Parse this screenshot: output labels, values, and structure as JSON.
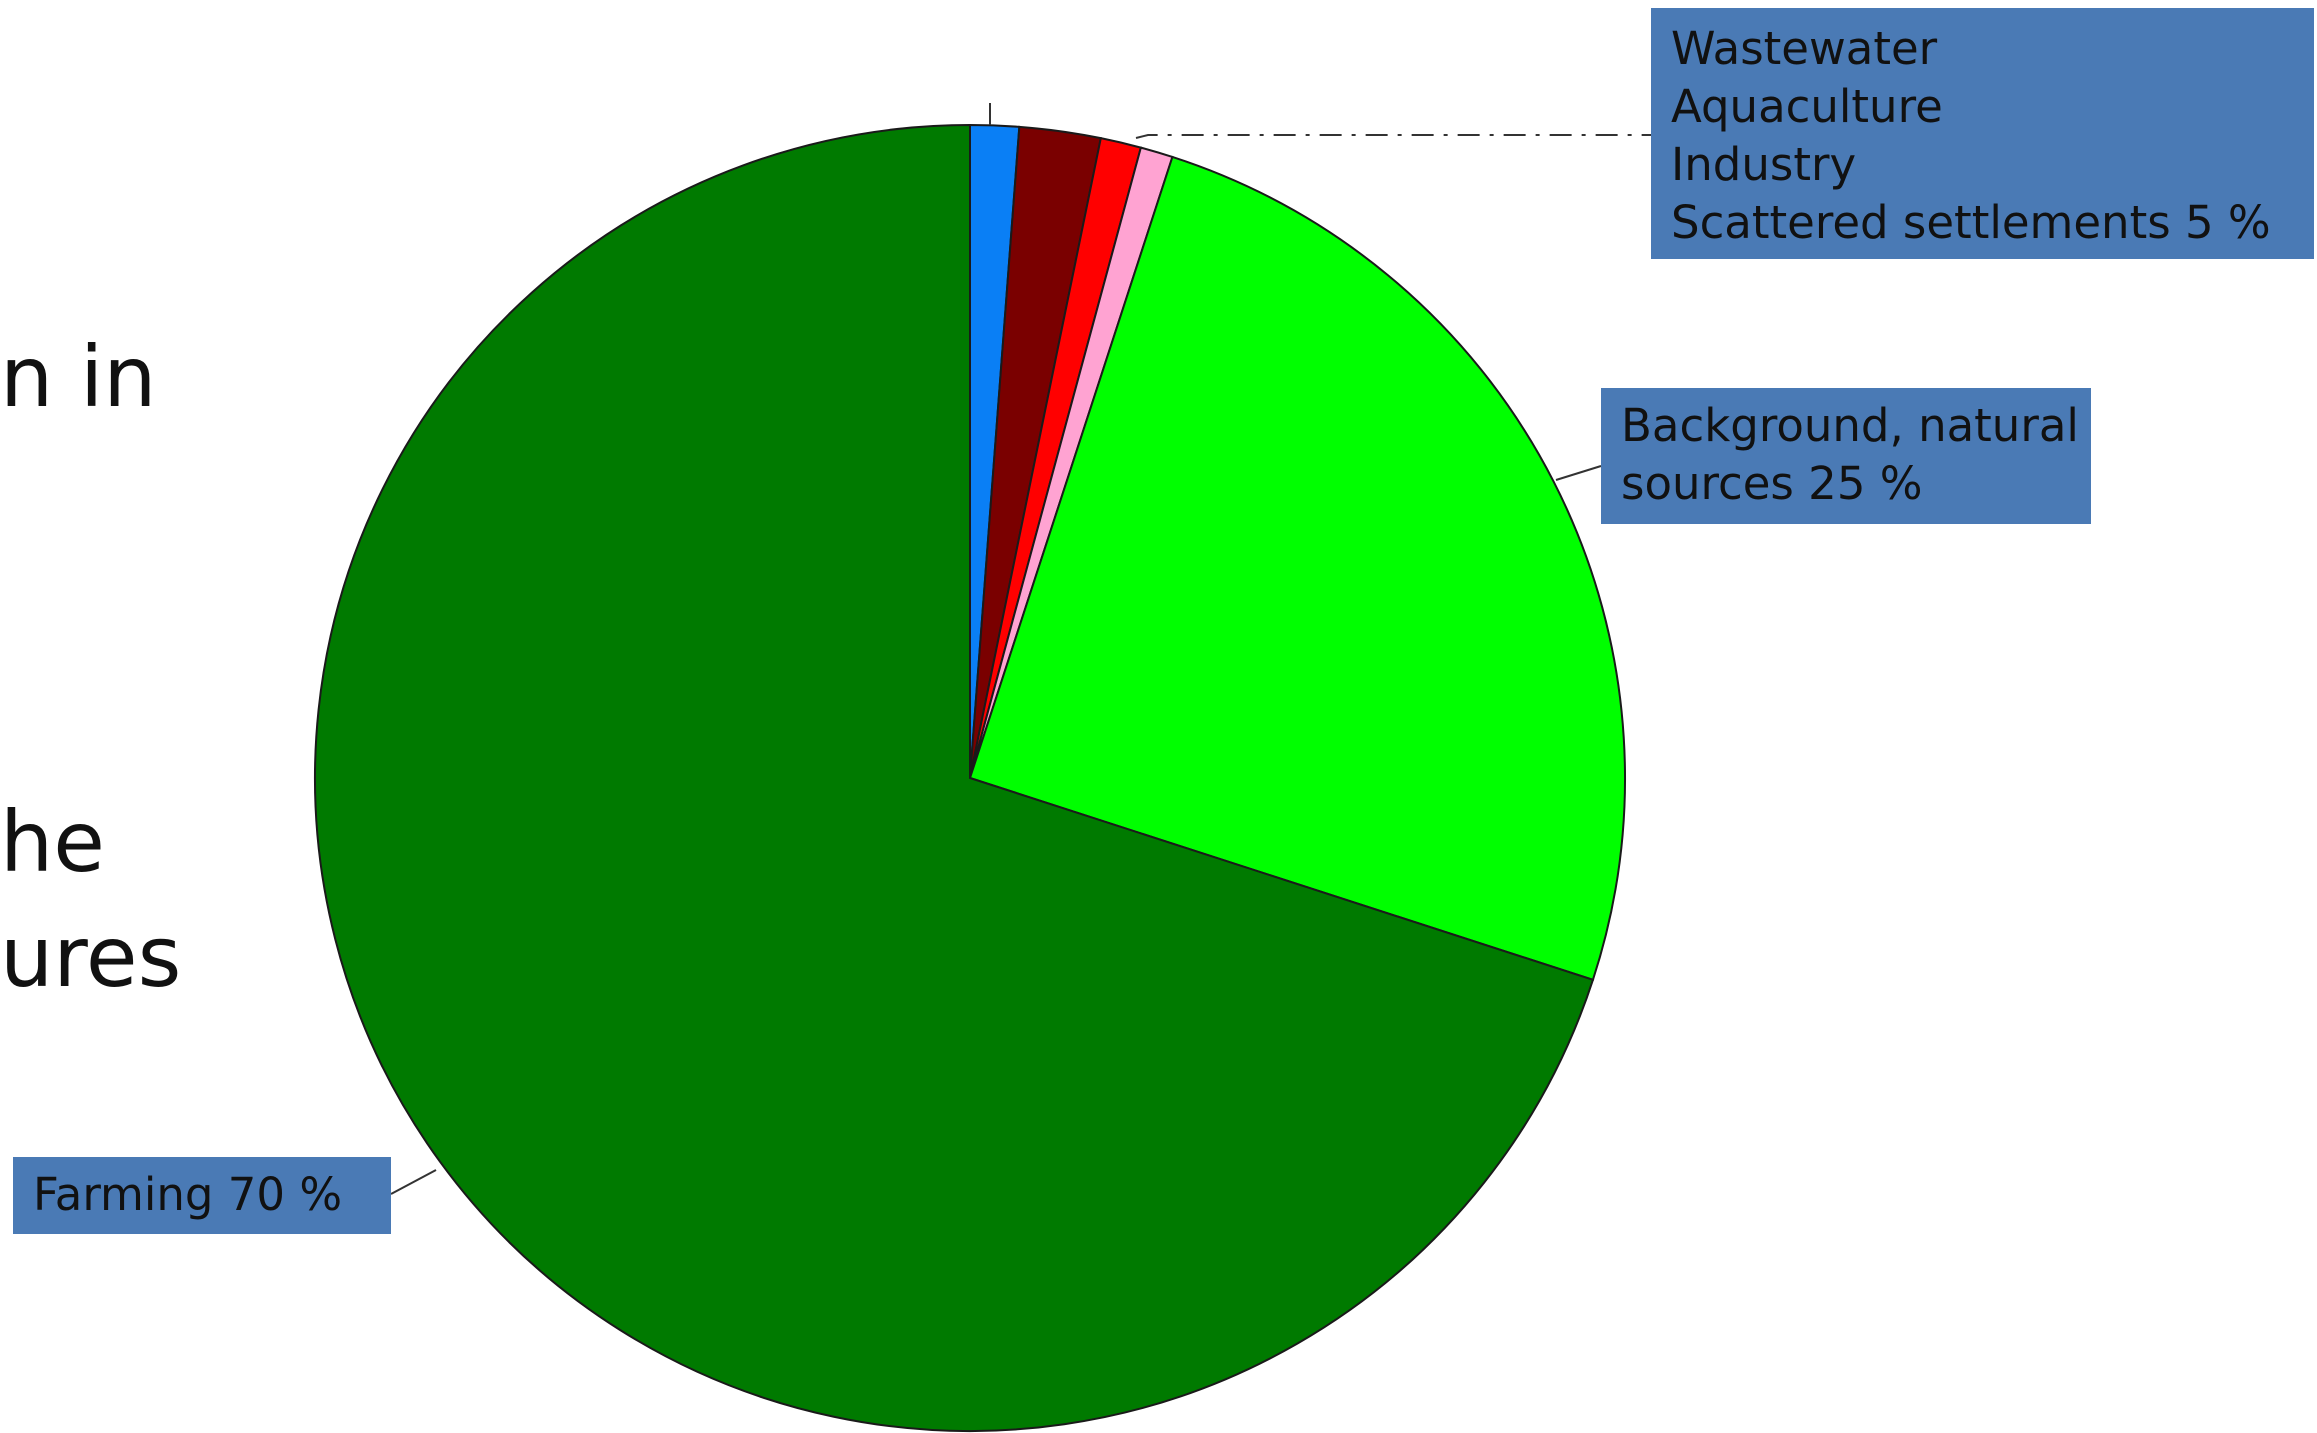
{
  "background_text": {
    "line1": "n in",
    "line2": "he",
    "line3": "ures"
  },
  "chart_data": {
    "type": "pie",
    "start_angle_deg": 0,
    "direction": "clockwise",
    "slices": [
      {
        "name": "Wastewater",
        "value": 1.2,
        "color": "#0a7ff5"
      },
      {
        "name": "Aquaculture",
        "value": 2.0,
        "color": "#7a0000"
      },
      {
        "name": "Industry",
        "value": 1.0,
        "color": "#ff0000"
      },
      {
        "name": "Scattered settlements",
        "value": 0.8,
        "color": "#ffa3d2"
      },
      {
        "name": "Background, natural sources",
        "value": 25,
        "color": "#00ff00"
      },
      {
        "name": "Farming",
        "value": 70,
        "color": "#007a00"
      }
    ],
    "labels": {
      "small_group": [
        "Wastewater",
        "Aquaculture",
        "Industry",
        "Scattered settlements 5 %"
      ],
      "background": [
        "Background, natural",
        "sources 25 %"
      ],
      "farming": [
        "Farming 70 %"
      ]
    },
    "label_box_color": "#4a7ab5"
  }
}
